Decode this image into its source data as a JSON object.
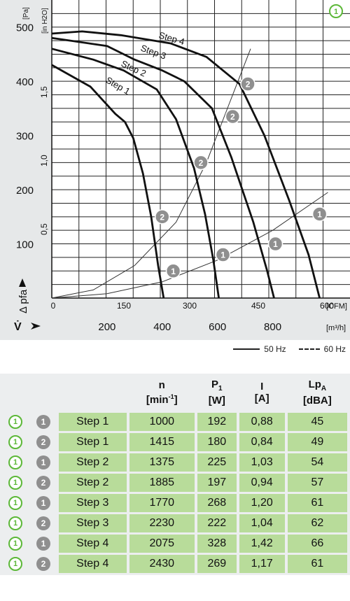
{
  "chart_data": {
    "type": "line",
    "badge": "1",
    "y_ticks_pa": [
      "100",
      "200",
      "300",
      "400",
      "500"
    ],
    "y_unit_pa": "[Pa]",
    "y_ticks_inh2o": [
      "0,5",
      "1,0",
      "1,5"
    ],
    "y_unit_inh2o": "[in H2O]",
    "x_ticks_cfm": [
      "0",
      "150",
      "300",
      "450",
      "600"
    ],
    "x_unit_cfm": "[CFM]",
    "x_ticks_m3h": [
      "200",
      "400",
      "600",
      "800"
    ],
    "x_unit_m3h": "[m³/h]",
    "ylabel": "Δ pfa",
    "xlabel": "V̇",
    "xlim_m3h": [
      0,
      1080
    ],
    "ylim_pa": [
      0,
      550
    ],
    "series": [
      {
        "name": "Step 1",
        "points": [
          [
            0,
            430
          ],
          [
            140,
            390
          ],
          [
            230,
            340
          ],
          [
            265,
            325
          ],
          [
            295,
            295
          ],
          [
            330,
            230
          ],
          [
            360,
            150
          ],
          [
            385,
            60
          ],
          [
            405,
            0
          ]
        ]
      },
      {
        "name": "Step 2",
        "points": [
          [
            0,
            460
          ],
          [
            150,
            440
          ],
          [
            260,
            420
          ],
          [
            380,
            385
          ],
          [
            450,
            330
          ],
          [
            515,
            240
          ],
          [
            555,
            155
          ],
          [
            585,
            70
          ],
          [
            605,
            0
          ]
        ]
      },
      {
        "name": "Step 3",
        "points": [
          [
            0,
            480
          ],
          [
            200,
            465
          ],
          [
            300,
            440
          ],
          [
            400,
            420
          ],
          [
            480,
            400
          ],
          [
            580,
            350
          ],
          [
            650,
            260
          ],
          [
            730,
            140
          ],
          [
            780,
            50
          ],
          [
            805,
            0
          ]
        ]
      },
      {
        "name": "Step 4",
        "points": [
          [
            0,
            488
          ],
          [
            110,
            492
          ],
          [
            250,
            485
          ],
          [
            430,
            470
          ],
          [
            560,
            445
          ],
          [
            680,
            395
          ],
          [
            770,
            300
          ],
          [
            860,
            180
          ],
          [
            930,
            80
          ],
          [
            970,
            0
          ]
        ]
      }
    ],
    "operating_points": [
      {
        "label": "1",
        "x": 440,
        "y": 50
      },
      {
        "label": "1",
        "x": 620,
        "y": 80
      },
      {
        "label": "1",
        "x": 810,
        "y": 100
      },
      {
        "label": "1",
        "x": 970,
        "y": 155
      },
      {
        "label": "2",
        "x": 400,
        "y": 150
      },
      {
        "label": "2",
        "x": 540,
        "y": 250
      },
      {
        "label": "2",
        "x": 655,
        "y": 335
      },
      {
        "label": "2",
        "x": 710,
        "y": 395
      }
    ],
    "system_curves": [
      {
        "points": [
          [
            0,
            0
          ],
          [
            200,
            8
          ],
          [
            400,
            30
          ],
          [
            600,
            70
          ],
          [
            800,
            125
          ],
          [
            1000,
            195
          ]
        ]
      },
      {
        "points": [
          [
            0,
            0
          ],
          [
            150,
            15
          ],
          [
            300,
            60
          ],
          [
            450,
            140
          ],
          [
            560,
            250
          ],
          [
            640,
            355
          ],
          [
            720,
            460
          ]
        ]
      }
    ],
    "legend": [
      {
        "label": "50 Hz",
        "style": "solid"
      },
      {
        "label": "60 Hz",
        "style": "dashed"
      }
    ]
  },
  "table": {
    "headers": {
      "n": "n",
      "n_unit_pre": "[min",
      "n_unit_sup": "-1",
      "n_unit_post": "]",
      "p": "P",
      "p_sub": "1",
      "p_unit": "[W]",
      "i": "I",
      "i_unit": "[A]",
      "lp": "Lp",
      "lp_sub": "A",
      "lp_unit": "[dBA]"
    },
    "rows": [
      {
        "badge": "1",
        "speed": "1",
        "step": "Step 1",
        "n": "1000",
        "p": "192",
        "i": "0,88",
        "lp": "45"
      },
      {
        "badge": "1",
        "speed": "2",
        "step": "Step 1",
        "n": "1415",
        "p": "180",
        "i": "0,84",
        "lp": "49"
      },
      {
        "badge": "1",
        "speed": "1",
        "step": "Step 2",
        "n": "1375",
        "p": "225",
        "i": "1,03",
        "lp": "54"
      },
      {
        "badge": "1",
        "speed": "2",
        "step": "Step 2",
        "n": "1885",
        "p": "197",
        "i": "0,94",
        "lp": "57"
      },
      {
        "badge": "1",
        "speed": "1",
        "step": "Step 3",
        "n": "1770",
        "p": "268",
        "i": "1,20",
        "lp": "61"
      },
      {
        "badge": "1",
        "speed": "2",
        "step": "Step 3",
        "n": "2230",
        "p": "222",
        "i": "1,04",
        "lp": "62"
      },
      {
        "badge": "1",
        "speed": "1",
        "step": "Step 4",
        "n": "2075",
        "p": "328",
        "i": "1,42",
        "lp": "66"
      },
      {
        "badge": "1",
        "speed": "2",
        "step": "Step 4",
        "n": "2430",
        "p": "269",
        "i": "1,17",
        "lp": "61"
      }
    ]
  }
}
